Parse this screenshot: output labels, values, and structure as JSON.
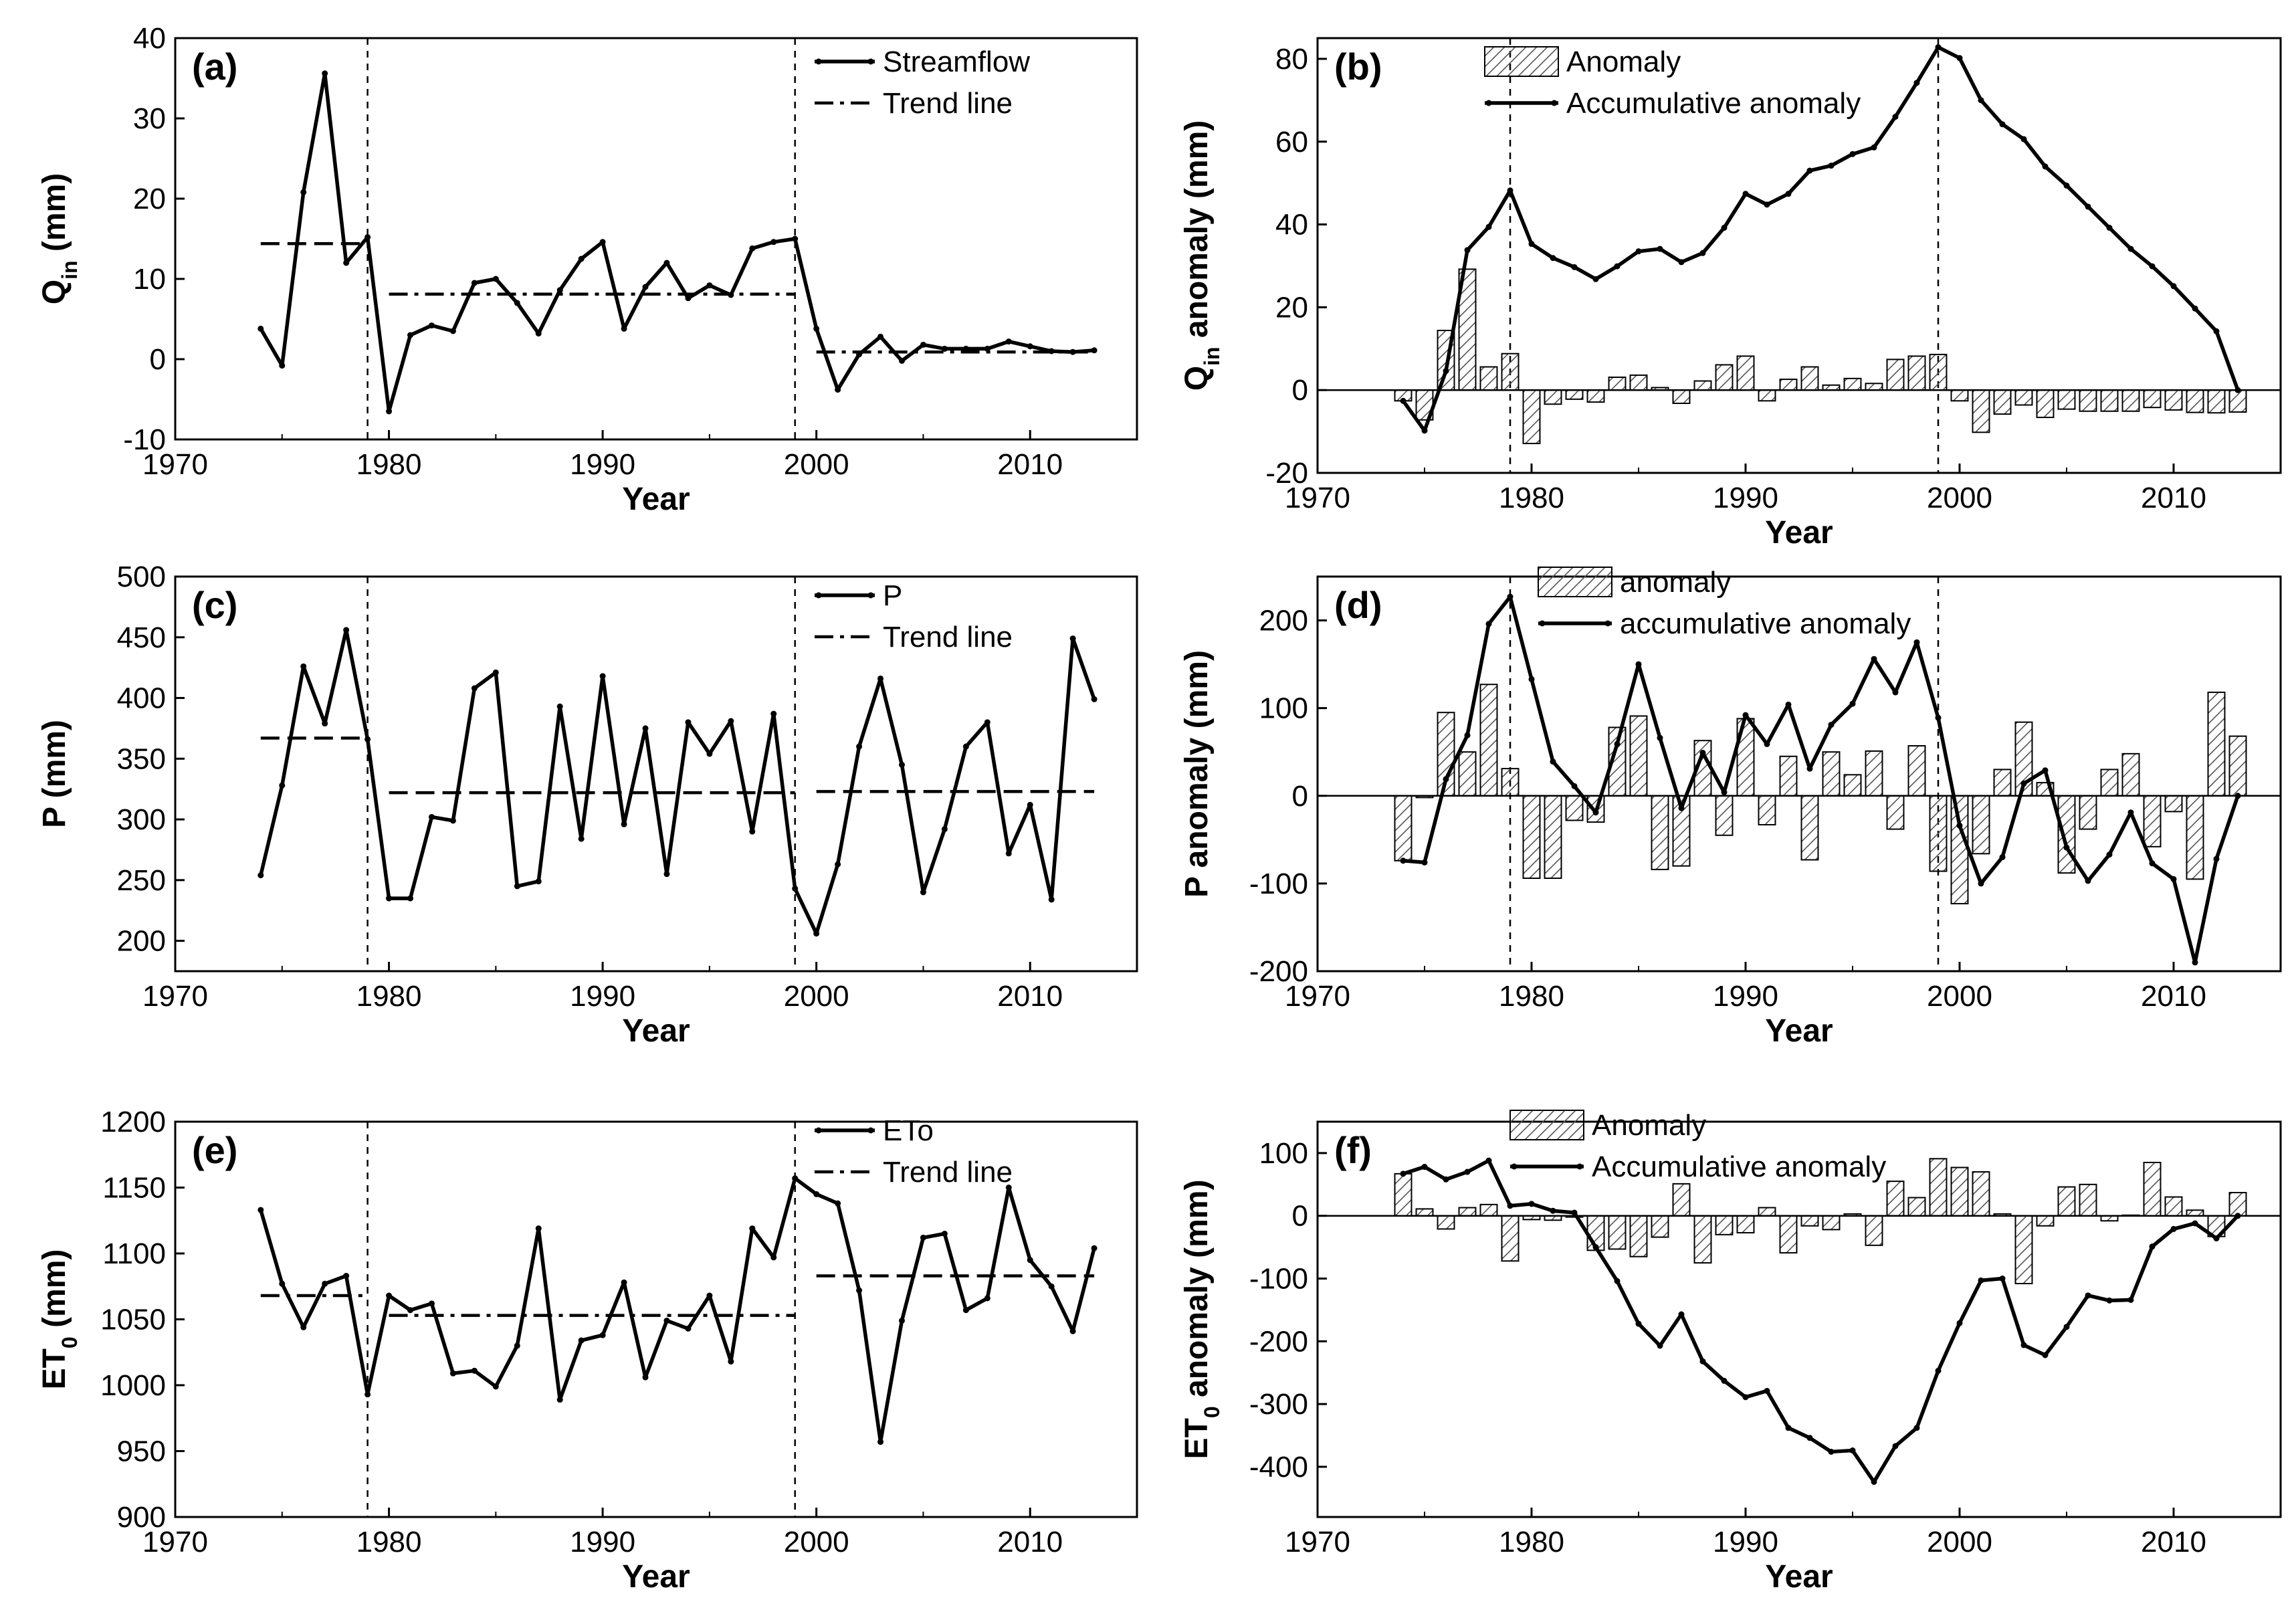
{
  "chart_data": [
    {
      "panel": "(a)",
      "type": "line",
      "xlabel": "Year",
      "ylabel_main": "Q",
      "ylabel_sub": "in",
      "ylabel_rest": " (mm)",
      "xlim": [
        1970,
        2015
      ],
      "ylim": [
        -10,
        40
      ],
      "xticks": [
        1970,
        1980,
        1990,
        2000,
        2010
      ],
      "yticks": [
        -10,
        0,
        10,
        20,
        30,
        40
      ],
      "change_points": [
        1979,
        1999
      ],
      "series": [
        {
          "name": "Streamflow",
          "x": [
            1974,
            1975,
            1976,
            1977,
            1978,
            1979,
            1980,
            1981,
            1982,
            1983,
            1984,
            1985,
            1986,
            1987,
            1988,
            1989,
            1990,
            1991,
            1992,
            1993,
            1994,
            1995,
            1996,
            1997,
            1998,
            1999,
            2000,
            2001,
            2002,
            2003,
            2004,
            2005,
            2006,
            2007,
            2008,
            2009,
            2010,
            2011,
            2012,
            2013
          ],
          "y": [
            3.8,
            -0.8,
            20.8,
            35.6,
            12.0,
            15.2,
            -6.5,
            3.0,
            4.2,
            3.5,
            9.5,
            10.0,
            7.0,
            3.2,
            8.6,
            12.5,
            14.6,
            3.8,
            9.0,
            12.0,
            7.6,
            9.2,
            8.0,
            13.8,
            14.6,
            15.0,
            3.8,
            -3.8,
            0.6,
            2.8,
            -0.2,
            1.8,
            1.3,
            1.3,
            1.3,
            2.2,
            1.6,
            1.0,
            0.9,
            1.1
          ]
        }
      ],
      "trend_segments": [
        {
          "name": "Trend line",
          "x": [
            1974,
            1979
          ],
          "y": 14.4,
          "style": "dash"
        },
        {
          "name": "Trend line",
          "x": [
            1980,
            1999
          ],
          "y": 8.1,
          "style": "dashdot"
        },
        {
          "name": "Trend line",
          "x": [
            2000,
            2013
          ],
          "y": 0.9,
          "style": "dashdot"
        }
      ],
      "legend": [
        {
          "label": "Streamflow",
          "kind": "line"
        },
        {
          "label": "Trend line",
          "kind": "dashdot"
        }
      ]
    },
    {
      "panel": "(b)",
      "type": "bar+line",
      "xlabel": "Year",
      "ylabel_main": "Q",
      "ylabel_sub": "in",
      "ylabel_rest": " anomaly (mm)",
      "xlim": [
        1970,
        2015
      ],
      "ylim": [
        -20,
        85
      ],
      "xticks": [
        1970,
        1980,
        1990,
        2000,
        2010
      ],
      "yticks": [
        -20,
        0,
        20,
        40,
        60,
        80
      ],
      "change_points": [
        1979,
        1999
      ],
      "bars": {
        "name": "Anomaly",
        "x": [
          1974,
          1975,
          1976,
          1977,
          1978,
          1979,
          1980,
          1981,
          1982,
          1983,
          1984,
          1985,
          1986,
          1987,
          1988,
          1989,
          1990,
          1991,
          1992,
          1993,
          1994,
          1995,
          1996,
          1997,
          1998,
          1999,
          2000,
          2001,
          2002,
          2003,
          2004,
          2005,
          2006,
          2007,
          2008,
          2009,
          2010,
          2011,
          2012,
          2013
        ],
        "y": [
          -2.6,
          -7.2,
          14.4,
          29.2,
          5.6,
          8.8,
          -12.9,
          -3.4,
          -2.2,
          -2.9,
          3.1,
          3.6,
          0.6,
          -3.2,
          2.2,
          6.1,
          8.2,
          -2.6,
          2.6,
          5.6,
          1.2,
          2.8,
          1.6,
          7.4,
          8.2,
          8.6,
          -2.6,
          -10.2,
          -5.8,
          -3.6,
          -6.6,
          -4.6,
          -5.1,
          -5.1,
          -5.1,
          -4.2,
          -4.8,
          -5.4,
          -5.5,
          -5.3
        ]
      },
      "series": [
        {
          "name": "Accumulative anomaly",
          "x": [
            1974,
            1975,
            1976,
            1977,
            1978,
            1979,
            1980,
            1981,
            1982,
            1983,
            1984,
            1985,
            1986,
            1987,
            1988,
            1989,
            1990,
            1991,
            1992,
            1993,
            1994,
            1995,
            1996,
            1997,
            1998,
            1999,
            2000,
            2001,
            2002,
            2003,
            2004,
            2005,
            2006,
            2007,
            2008,
            2009,
            2010,
            2011,
            2012,
            2013
          ],
          "y": [
            -2.6,
            -9.8,
            4.6,
            33.8,
            39.4,
            48.2,
            35.3,
            31.9,
            29.7,
            26.8,
            29.9,
            33.5,
            34.1,
            30.9,
            33.1,
            39.2,
            47.4,
            44.8,
            47.4,
            53.0,
            54.2,
            57.0,
            58.6,
            66.0,
            74.2,
            82.8,
            80.2,
            70.0,
            64.2,
            60.6,
            54.0,
            49.4,
            44.3,
            39.2,
            34.1,
            29.9,
            25.1,
            19.7,
            14.2,
            0
          ]
        }
      ],
      "legend": [
        {
          "label": "Anomaly",
          "kind": "hatch"
        },
        {
          "label": "Accumulative anomaly",
          "kind": "line"
        }
      ]
    },
    {
      "panel": "(c)",
      "type": "line",
      "xlabel": "Year",
      "ylabel_main": "P",
      "ylabel_sub": "",
      "ylabel_rest": " (mm)",
      "xlim": [
        1970,
        2015
      ],
      "ylim": [
        175,
        500
      ],
      "xticks": [
        1970,
        1980,
        1990,
        2000,
        2010
      ],
      "yticks": [
        200,
        250,
        300,
        350,
        400,
        450,
        500
      ],
      "change_points": [
        1979,
        1999
      ],
      "series": [
        {
          "name": "P",
          "x": [
            1974,
            1975,
            1976,
            1977,
            1978,
            1979,
            1980,
            1981,
            1982,
            1983,
            1984,
            1985,
            1986,
            1987,
            1988,
            1989,
            1990,
            1991,
            1992,
            1993,
            1994,
            1995,
            1996,
            1997,
            1998,
            1999,
            2000,
            2001,
            2002,
            2003,
            2004,
            2005,
            2006,
            2007,
            2008,
            2009,
            2010,
            2011,
            2012,
            2013
          ],
          "y": [
            254,
            328,
            426,
            379,
            456,
            366,
            235,
            235,
            302,
            299,
            408,
            421,
            245,
            249,
            393,
            284,
            418,
            296,
            375,
            255,
            380,
            354,
            381,
            290,
            387,
            243,
            206,
            263,
            360,
            416,
            345,
            240,
            292,
            360,
            380,
            272,
            312,
            234,
            449,
            399
          ]
        }
      ],
      "trend_segments": [
        {
          "name": "Trend line",
          "x": [
            1974,
            1979
          ],
          "y": 367,
          "style": "dash"
        },
        {
          "name": "Trend line",
          "x": [
            1980,
            1999
          ],
          "y": 322,
          "style": "dash"
        },
        {
          "name": "Trend line",
          "x": [
            2000,
            2013
          ],
          "y": 323,
          "style": "dash"
        }
      ],
      "legend": [
        {
          "label": "P",
          "kind": "line"
        },
        {
          "label": "Trend line",
          "kind": "dashdot"
        }
      ]
    },
    {
      "panel": "(d)",
      "type": "bar+line",
      "xlabel": "Year",
      "ylabel_main": "P",
      "ylabel_sub": "",
      "ylabel_rest": " anomaly (mm)",
      "xlim": [
        1970,
        2015
      ],
      "ylim": [
        -200,
        250
      ],
      "xticks": [
        1970,
        1980,
        1990,
        2000,
        2010
      ],
      "yticks": [
        -200,
        -100,
        0,
        100,
        200
      ],
      "change_points": [
        1979,
        1999
      ],
      "bars": {
        "name": "anomaly",
        "x": [
          1974,
          1975,
          1976,
          1977,
          1978,
          1979,
          1980,
          1981,
          1982,
          1983,
          1984,
          1985,
          1986,
          1987,
          1988,
          1989,
          1990,
          1991,
          1992,
          1993,
          1994,
          1995,
          1996,
          1997,
          1998,
          1999,
          2000,
          2001,
          2002,
          2003,
          2004,
          2005,
          2006,
          2007,
          2008,
          2009,
          2010,
          2011,
          2012,
          2013
        ],
        "y": [
          -74,
          -2,
          95,
          50,
          127,
          31,
          -94,
          -94,
          -28,
          -30,
          78,
          91,
          -84,
          -80,
          63,
          -45,
          88,
          -33,
          45,
          -73,
          50,
          24,
          51,
          -38,
          57,
          -86,
          -123,
          -66,
          30,
          84,
          15,
          -88,
          -38,
          30,
          48,
          -58,
          -18,
          -95,
          118,
          68
        ]
      },
      "series": [
        {
          "name": "accumulative anomaly",
          "x": [
            1974,
            1975,
            1976,
            1977,
            1978,
            1979,
            1980,
            1981,
            1982,
            1983,
            1984,
            1985,
            1986,
            1987,
            1988,
            1989,
            1990,
            1991,
            1992,
            1993,
            1994,
            1995,
            1996,
            1997,
            1998,
            1999,
            2000,
            2001,
            2002,
            2003,
            2004,
            2005,
            2006,
            2007,
            2008,
            2009,
            2010,
            2011,
            2012,
            2013
          ],
          "y": [
            -74,
            -76,
            19,
            69,
            196,
            227,
            133,
            39,
            11,
            -19,
            59,
            150,
            66,
            -14,
            49,
            4,
            92,
            59,
            104,
            31,
            81,
            105,
            156,
            118,
            175,
            89,
            -34,
            -100,
            -70,
            14,
            29,
            -59,
            -97,
            -67,
            -19,
            -77,
            -95,
            -190,
            -72,
            0
          ]
        }
      ],
      "legend": [
        {
          "label": "anomaly",
          "kind": "hatch"
        },
        {
          "label": "accumulative anomaly",
          "kind": "line"
        }
      ]
    },
    {
      "panel": "(e)",
      "type": "line",
      "xlabel": "Year",
      "ylabel_main": "ET",
      "ylabel_sub": "0",
      "ylabel_rest": " (mm)",
      "xlim": [
        1970,
        2015
      ],
      "ylim": [
        900,
        1200
      ],
      "xticks": [
        1970,
        1980,
        1990,
        2000,
        2010
      ],
      "yticks": [
        900,
        950,
        1000,
        1050,
        1100,
        1150,
        1200
      ],
      "change_points": [
        1979,
        1999
      ],
      "series": [
        {
          "name": "ETo",
          "x": [
            1974,
            1975,
            1976,
            1977,
            1978,
            1979,
            1980,
            1981,
            1982,
            1983,
            1984,
            1985,
            1986,
            1987,
            1988,
            1989,
            1990,
            1991,
            1992,
            1993,
            1994,
            1995,
            1996,
            1997,
            1998,
            1999,
            2000,
            2001,
            2002,
            2003,
            2004,
            2005,
            2006,
            2007,
            2008,
            2009,
            2010,
            2011,
            2012,
            2013
          ],
          "y": [
            1133,
            1077,
            1044,
            1077,
            1083,
            993,
            1068,
            1057,
            1062,
            1009,
            1011,
            999,
            1030,
            1119,
            989,
            1034,
            1038,
            1078,
            1006,
            1049,
            1043,
            1068,
            1018,
            1119,
            1097,
            1157,
            1145,
            1138,
            1072,
            957,
            1049,
            1112,
            1115,
            1057,
            1066,
            1150,
            1095,
            1075,
            1041,
            1104
          ]
        }
      ],
      "trend_segments": [
        {
          "name": "Trend line",
          "x": [
            1974,
            1979
          ],
          "y": 1068,
          "style": "dashdot"
        },
        {
          "name": "Trend line",
          "x": [
            1980,
            1999
          ],
          "y": 1053,
          "style": "dashdot"
        },
        {
          "name": "Trend line",
          "x": [
            2000,
            2013
          ],
          "y": 1083,
          "style": "dash"
        }
      ],
      "legend": [
        {
          "label": "ETo",
          "kind": "line"
        },
        {
          "label": "Trend line",
          "kind": "dashdot"
        }
      ]
    },
    {
      "panel": "(f)",
      "type": "bar+line",
      "xlabel": "Year",
      "ylabel_main": "ET",
      "ylabel_sub": "0",
      "ylabel_rest": " anomaly (mm)",
      "xlim": [
        1970,
        2015
      ],
      "ylim": [
        -480,
        150
      ],
      "xticks": [
        1970,
        1980,
        1990,
        2000,
        2010
      ],
      "yticks": [
        -400,
        -300,
        -200,
        -100,
        0,
        100
      ],
      "change_points": [],
      "bars": {
        "name": "Anomaly",
        "x": [
          1974,
          1975,
          1976,
          1977,
          1978,
          1979,
          1980,
          1981,
          1982,
          1983,
          1984,
          1985,
          1986,
          1987,
          1988,
          1989,
          1990,
          1991,
          1992,
          1993,
          1994,
          1995,
          1996,
          1997,
          1998,
          1999,
          2000,
          2001,
          2002,
          2003,
          2004,
          2005,
          2006,
          2007,
          2008,
          2009,
          2010,
          2011,
          2012,
          2013
        ],
        "y": [
          67,
          11,
          -21,
          13,
          18,
          -72,
          -6,
          -7,
          -2,
          -55,
          -53,
          -65,
          -34,
          51,
          -75,
          -30,
          -27,
          13,
          -59,
          -16,
          -22,
          3,
          -47,
          55,
          29,
          91,
          77,
          70,
          3,
          -108,
          -16,
          46,
          50,
          -8,
          1,
          85,
          30,
          9,
          -33,
          37
        ]
      },
      "series": [
        {
          "name": "Accumulative anomaly",
          "x": [
            1974,
            1975,
            1976,
            1977,
            1978,
            1979,
            1980,
            1981,
            1982,
            1983,
            1984,
            1985,
            1986,
            1987,
            1988,
            1989,
            1990,
            1991,
            1992,
            1993,
            1994,
            1995,
            1996,
            1997,
            1998,
            1999,
            2000,
            2001,
            2002,
            2003,
            2004,
            2005,
            2006,
            2007,
            2008,
            2009,
            2010,
            2011,
            2012,
            2013
          ],
          "y": [
            67,
            78,
            58,
            70,
            88,
            16,
            19,
            8,
            5,
            -50,
            -104,
            -172,
            -207,
            -157,
            -232,
            -263,
            -289,
            -279,
            -338,
            -354,
            -376,
            -374,
            -424,
            -367,
            -338,
            -247,
            -171,
            -103,
            -100,
            -206,
            -222,
            -177,
            -127,
            -135,
            -134,
            -49,
            -21,
            -12,
            -36,
            0
          ]
        }
      ],
      "legend": [
        {
          "label": "Anomaly",
          "kind": "hatch"
        },
        {
          "label": "Accumulative anomaly",
          "kind": "line"
        }
      ]
    }
  ]
}
